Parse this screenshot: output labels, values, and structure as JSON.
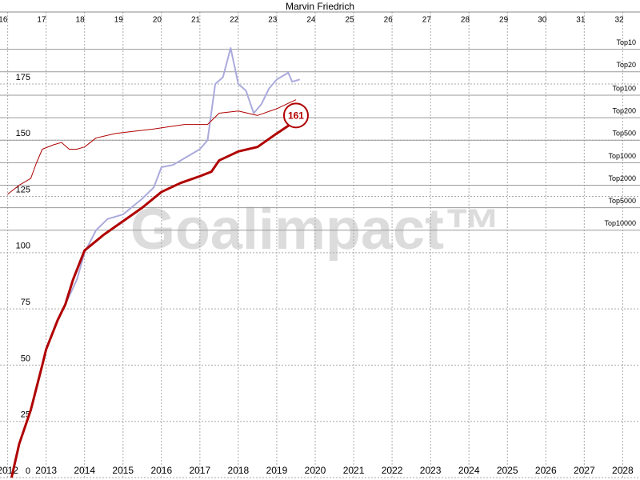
{
  "chart_data": {
    "type": "line",
    "title": "Marvin Friedrich",
    "xlim": [
      2011.8,
      2028.45
    ],
    "xticks": [
      2012,
      2013,
      2014,
      2015,
      2016,
      2017,
      2018,
      2019,
      2020,
      2021,
      2022,
      2023,
      2024,
      2025,
      2026,
      2027,
      2028
    ],
    "x2lim": [
      15.92,
      32.54
    ],
    "x2ticks": [
      16,
      17,
      18,
      19,
      20,
      21,
      22,
      23,
      24,
      25,
      26,
      27,
      28,
      29,
      30,
      31,
      32
    ],
    "ylim": [
      0,
      207
    ],
    "yticks": [
      0,
      25,
      50,
      75,
      100,
      125,
      150,
      175
    ],
    "grid": true,
    "reference_lines": [
      {
        "label": "Top10",
        "value": 190.4
      },
      {
        "label": "Top20",
        "value": 180.4
      },
      {
        "label": "Top100",
        "value": 170
      },
      {
        "label": "Top200",
        "value": 160
      },
      {
        "label": "Top500",
        "value": 150
      },
      {
        "label": "Top1000",
        "value": 140
      },
      {
        "label": "Top2000",
        "value": 130
      },
      {
        "label": "Top5000",
        "value": 120
      },
      {
        "label": "Top10000",
        "value": 110
      }
    ],
    "watermark": "Goalimpact™",
    "series": [
      {
        "color": "#aaaadd",
        "width": 2,
        "x": [
          2013.5,
          2013.8,
          2014.0,
          2014.3,
          2014.6,
          2015.0,
          2015.5,
          2015.8,
          2016.0,
          2016.3,
          2016.6,
          2017.0,
          2017.2,
          2017.4,
          2017.6,
          2017.8,
          2018.0,
          2018.2,
          2018.4,
          2018.6,
          2018.8,
          2019.0,
          2019.3,
          2019.4,
          2019.6
        ],
        "values": [
          77,
          88,
          100,
          110,
          115,
          117,
          124,
          129,
          138,
          139,
          142,
          146,
          150,
          175,
          178,
          191,
          175,
          172,
          162,
          166,
          173,
          177,
          180,
          176,
          177
        ]
      },
      {
        "color": "#b00000",
        "width": 1,
        "x": [
          2012.0,
          2012.3,
          2012.6,
          2012.75,
          2012.9,
          2013.2,
          2013.4,
          2013.6,
          2013.8,
          2014.0,
          2014.3,
          2014.8,
          2015.3,
          2015.8,
          2016.2,
          2016.6,
          2017.2,
          2017.5,
          2018.0,
          2018.5,
          2019.0,
          2019.5
        ],
        "values": [
          126,
          130,
          133,
          140,
          146,
          148,
          149,
          146,
          146,
          147,
          151,
          153,
          154,
          155,
          156,
          157,
          157,
          162,
          163,
          161,
          164,
          168
        ]
      },
      {
        "color": "#b00000",
        "width": 3,
        "x": [
          2012.1,
          2012.3,
          2012.6,
          2012.9,
          2013.0,
          2013.3,
          2013.5,
          2013.7,
          2014.0,
          2014.5,
          2015.0,
          2015.5,
          2016.0,
          2016.5,
          2017.0,
          2017.3,
          2017.5,
          2018.0,
          2018.5,
          2019.0,
          2019.35
        ],
        "values": [
          0,
          15,
          30,
          50,
          57,
          70,
          77,
          88,
          101,
          108,
          114,
          120,
          127,
          131,
          134,
          136,
          141,
          145,
          147,
          153,
          157
        ]
      }
    ],
    "annotation": {
      "text": "161",
      "x": 2019.5,
      "y": 161
    }
  }
}
